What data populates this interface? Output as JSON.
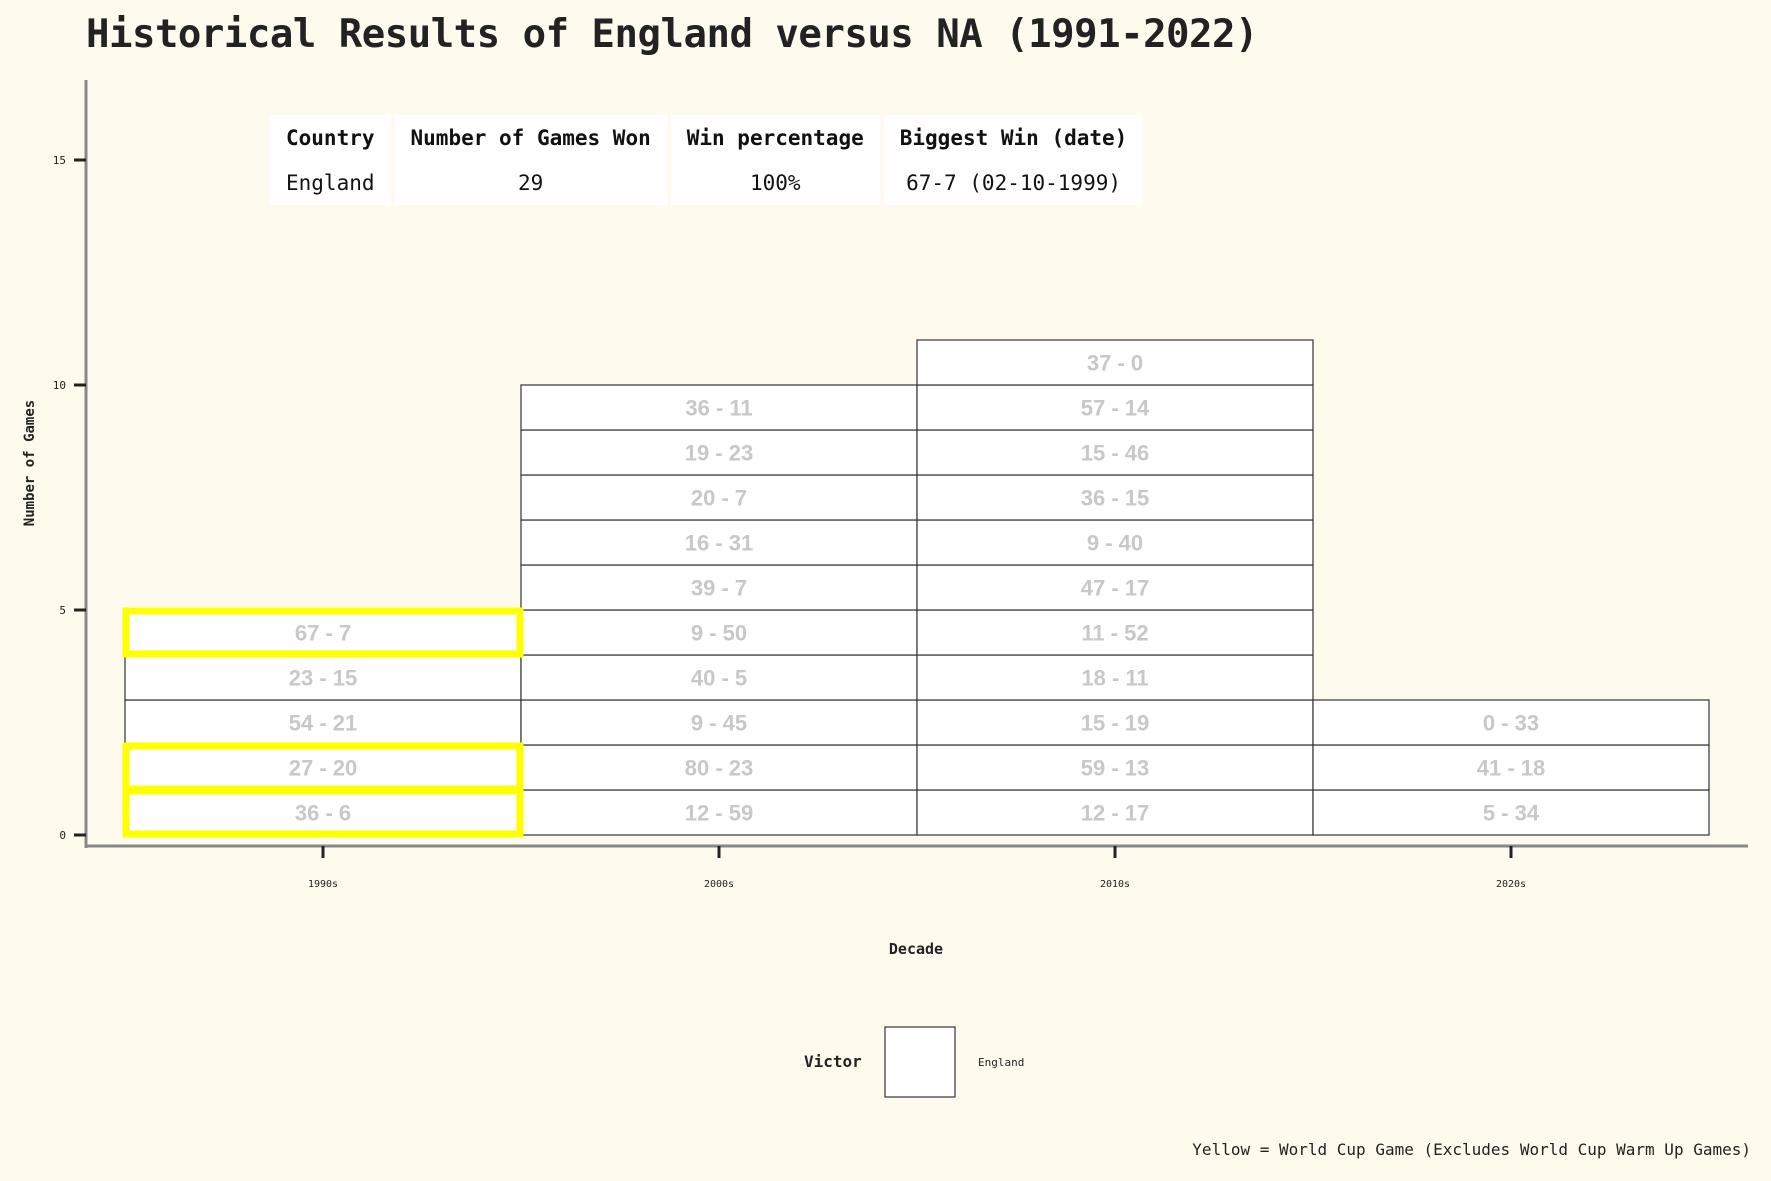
{
  "chart_data": {
    "type": "bar",
    "title": "Historical Results of England versus NA (1991-2022)",
    "xlabel": "Decade",
    "ylabel": "Number of Games",
    "categories": [
      "1990s",
      "2000s",
      "2010s",
      "2020s"
    ],
    "values": [
      5,
      10,
      11,
      3
    ],
    "ylim": [
      0,
      16.5
    ],
    "yticks": [
      0,
      5,
      10,
      15
    ],
    "grid": false,
    "series": [
      {
        "name": "England",
        "values": [
          5,
          10,
          11,
          3
        ]
      }
    ],
    "stacked_games": [
      [
        {
          "score": "36 - 6",
          "world_cup": true
        },
        {
          "score": "27 - 20",
          "world_cup": true
        },
        {
          "score": "54 - 21",
          "world_cup": false
        },
        {
          "score": "23 - 15",
          "world_cup": false
        },
        {
          "score": "67 - 7",
          "world_cup": true
        }
      ],
      [
        {
          "score": "12 - 59",
          "world_cup": false
        },
        {
          "score": "80 - 23",
          "world_cup": false
        },
        {
          "score": "9 - 45",
          "world_cup": false
        },
        {
          "score": "40 - 5",
          "world_cup": false
        },
        {
          "score": "9 - 50",
          "world_cup": false
        },
        {
          "score": "39 - 7",
          "world_cup": false
        },
        {
          "score": "16 - 31",
          "world_cup": false
        },
        {
          "score": "20 - 7",
          "world_cup": false
        },
        {
          "score": "19 - 23",
          "world_cup": false
        },
        {
          "score": "36 - 11",
          "world_cup": false
        }
      ],
      [
        {
          "score": "12 - 17",
          "world_cup": false
        },
        {
          "score": "59 - 13",
          "world_cup": false
        },
        {
          "score": "15 - 19",
          "world_cup": false
        },
        {
          "score": "18 - 11",
          "world_cup": false
        },
        {
          "score": "11 - 52",
          "world_cup": false
        },
        {
          "score": "47 - 17",
          "world_cup": false
        },
        {
          "score": "9 - 40",
          "world_cup": false
        },
        {
          "score": "36 - 15",
          "world_cup": false
        },
        {
          "score": "15 - 46",
          "world_cup": false
        },
        {
          "score": "57 - 14",
          "world_cup": false
        },
        {
          "score": "37 - 0",
          "world_cup": false
        }
      ],
      [
        {
          "score": "5 - 34",
          "world_cup": false
        },
        {
          "score": "41 - 18",
          "world_cup": false
        },
        {
          "score": "0 - 33",
          "world_cup": false
        }
      ]
    ],
    "legend": {
      "title": "Victor",
      "entries": [
        "England"
      ],
      "placement": "bottom"
    },
    "colors": {
      "background": "#fffaee",
      "box_fill": "#ffffff",
      "box_stroke": "#333333",
      "score_text": "#c8c8c8",
      "world_cup_highlight": "#ffff00",
      "axis": "#888888"
    }
  },
  "table": {
    "headers": [
      "Country",
      "Number of Games Won",
      "Win percentage",
      "Biggest Win (date)"
    ],
    "rows": [
      [
        "England",
        "29",
        "100%",
        "67-7 (02-10-1999)"
      ]
    ]
  },
  "footnote": "Yellow = World Cup Game (Excludes World Cup Warm Up Games)"
}
